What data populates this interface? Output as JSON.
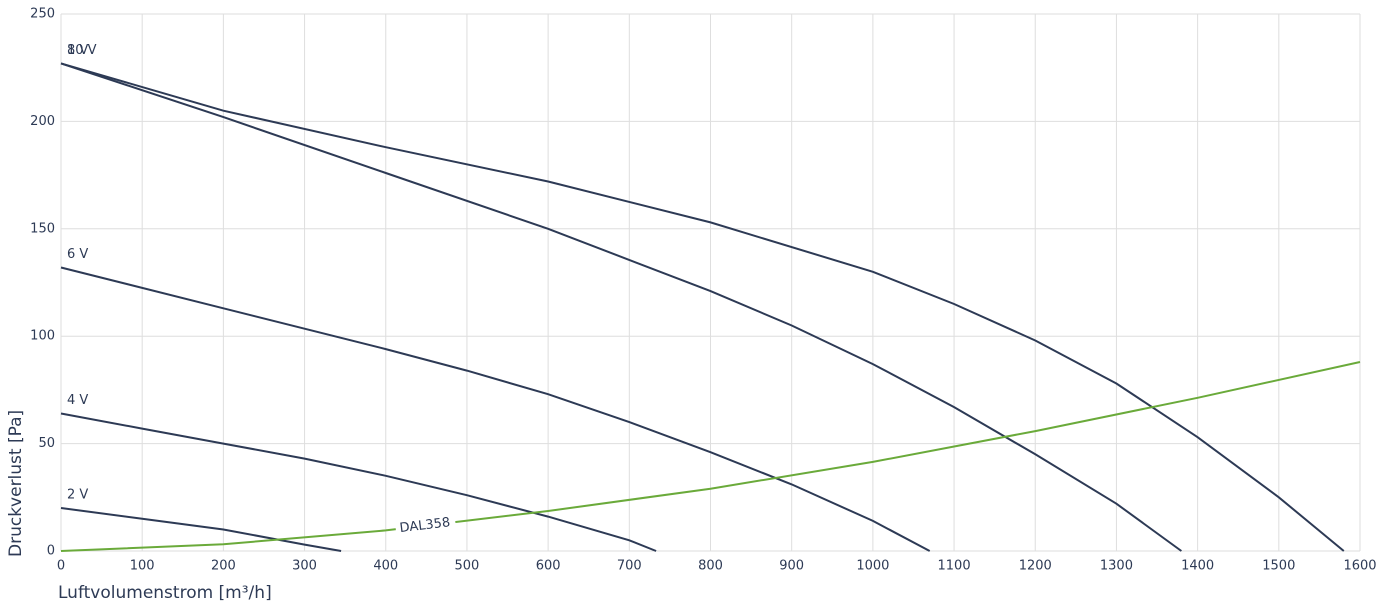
{
  "chart_data": {
    "type": "line",
    "x_label": "Luftvolumenstrom [m³/h]",
    "y_label": "Druckverlust [Pa]",
    "xlim": [
      0,
      1600
    ],
    "ylim": [
      0,
      250
    ],
    "xticks": [
      0,
      100,
      200,
      300,
      400,
      500,
      600,
      700,
      800,
      900,
      1000,
      1100,
      1200,
      1300,
      1400,
      1500,
      1600
    ],
    "yticks": [
      0,
      50,
      100,
      150,
      200,
      250
    ],
    "grid": true,
    "series": [
      {
        "name": "10 V",
        "color": "#2d3a55",
        "x": [
          0,
          200,
          400,
          600,
          800,
          1000,
          1100,
          1200,
          1300,
          1400,
          1500,
          1580
        ],
        "values": [
          227,
          205,
          188,
          172,
          153,
          130,
          115,
          98,
          78,
          53,
          25,
          0
        ]
      },
      {
        "name": "8 V",
        "color": "#2d3a55",
        "x": [
          0,
          200,
          400,
          600,
          800,
          900,
          1000,
          1100,
          1200,
          1300,
          1380
        ],
        "values": [
          227,
          202,
          176,
          150,
          121,
          105,
          87,
          67,
          45,
          22,
          0
        ]
      },
      {
        "name": "6 V",
        "color": "#2d3a55",
        "x": [
          0,
          200,
          400,
          500,
          600,
          700,
          800,
          900,
          1000,
          1070
        ],
        "values": [
          132,
          113,
          94,
          84,
          73,
          60,
          46,
          31,
          14,
          0
        ]
      },
      {
        "name": "4 V",
        "color": "#2d3a55",
        "x": [
          0,
          100,
          200,
          300,
          400,
          500,
          600,
          700,
          733
        ],
        "values": [
          64,
          57,
          50,
          43,
          35,
          26,
          16,
          5,
          0
        ]
      },
      {
        "name": "2 V",
        "color": "#2d3a55",
        "x": [
          0,
          100,
          200,
          300,
          345
        ],
        "values": [
          20,
          15,
          10,
          3,
          0
        ]
      },
      {
        "name": "DAL358",
        "color": "#6aaa3a",
        "x": [
          0,
          200,
          400,
          600,
          800,
          1000,
          1200,
          1400,
          1600
        ],
        "values": [
          0,
          3.1,
          9.6,
          18.6,
          29,
          41.5,
          55.8,
          71.3,
          88
        ]
      }
    ]
  }
}
